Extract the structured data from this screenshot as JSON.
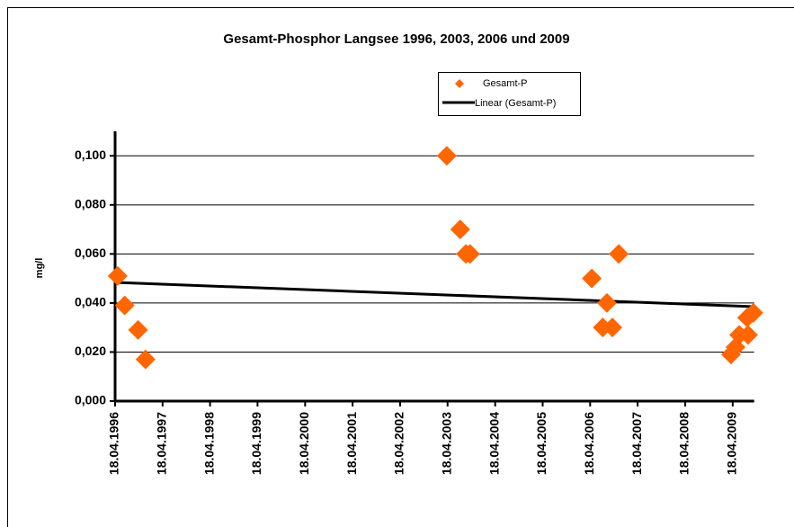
{
  "chart_data": {
    "type": "scatter",
    "title": "Gesamt-Phosphor  Langsee 1996, 2003, 2006 und 2009",
    "y_label": "mg/l",
    "series": [
      {
        "name": "Gesamt-P",
        "color": "#ff6600",
        "x": [
          "1996-05-08",
          "1996-07-01",
          "1996-10-12",
          "1996-12-08",
          "2003-04-12",
          "2003-07-24",
          "2003-09-06",
          "2003-10-08",
          "2006-05-01",
          "2006-08-25",
          "2006-07-24",
          "2006-10-06",
          "2006-11-24",
          "2009-04-05",
          "2009-05-10",
          "2009-06-07",
          "2009-08-14",
          "2009-08-07",
          "2009-09-24"
        ],
        "values": [
          0.051,
          0.039,
          0.029,
          0.017,
          0.1,
          0.07,
          0.06,
          0.06,
          0.05,
          0.04,
          0.03,
          0.03,
          0.06,
          0.019,
          0.022,
          0.027,
          0.027,
          0.034,
          0.036
        ]
      }
    ],
    "trendline": {
      "name": "Linear (Gesamt-P)",
      "color": "#000000",
      "x": [
        "1996-04-18",
        "2009-09-30"
      ],
      "values": [
        0.0484,
        0.0385
      ]
    },
    "xlim": [
      "1996-04-18",
      "2009-09-30"
    ],
    "xticks": [
      {
        "value": "1996-04-18",
        "label": "18.04.1996"
      },
      {
        "value": "1997-04-18",
        "label": "18.04.1997"
      },
      {
        "value": "1998-04-18",
        "label": "18.04.1998"
      },
      {
        "value": "1999-04-18",
        "label": "18.04.1999"
      },
      {
        "value": "2000-04-18",
        "label": "18.04.2000"
      },
      {
        "value": "2001-04-18",
        "label": "18.04.2001"
      },
      {
        "value": "2002-04-18",
        "label": "18.04.2002"
      },
      {
        "value": "2003-04-18",
        "label": "18.04.2003"
      },
      {
        "value": "2004-04-18",
        "label": "18.04.2004"
      },
      {
        "value": "2005-04-18",
        "label": "18.04.2005"
      },
      {
        "value": "2006-04-18",
        "label": "18.04.2006"
      },
      {
        "value": "2007-04-18",
        "label": "18.04.2007"
      },
      {
        "value": "2008-04-18",
        "label": "18.04.2008"
      },
      {
        "value": "2009-04-18",
        "label": "18.04.2009"
      }
    ],
    "ylim": [
      0,
      0.11
    ],
    "yticks": [
      {
        "value": 0,
        "label": "0,000"
      },
      {
        "value": 0.02,
        "label": "0,020"
      },
      {
        "value": 0.04,
        "label": "0,040"
      },
      {
        "value": 0.06,
        "label": "0,060"
      },
      {
        "value": 0.08,
        "label": "0,080"
      },
      {
        "value": 0.1,
        "label": "0,100"
      }
    ],
    "grid": true
  }
}
